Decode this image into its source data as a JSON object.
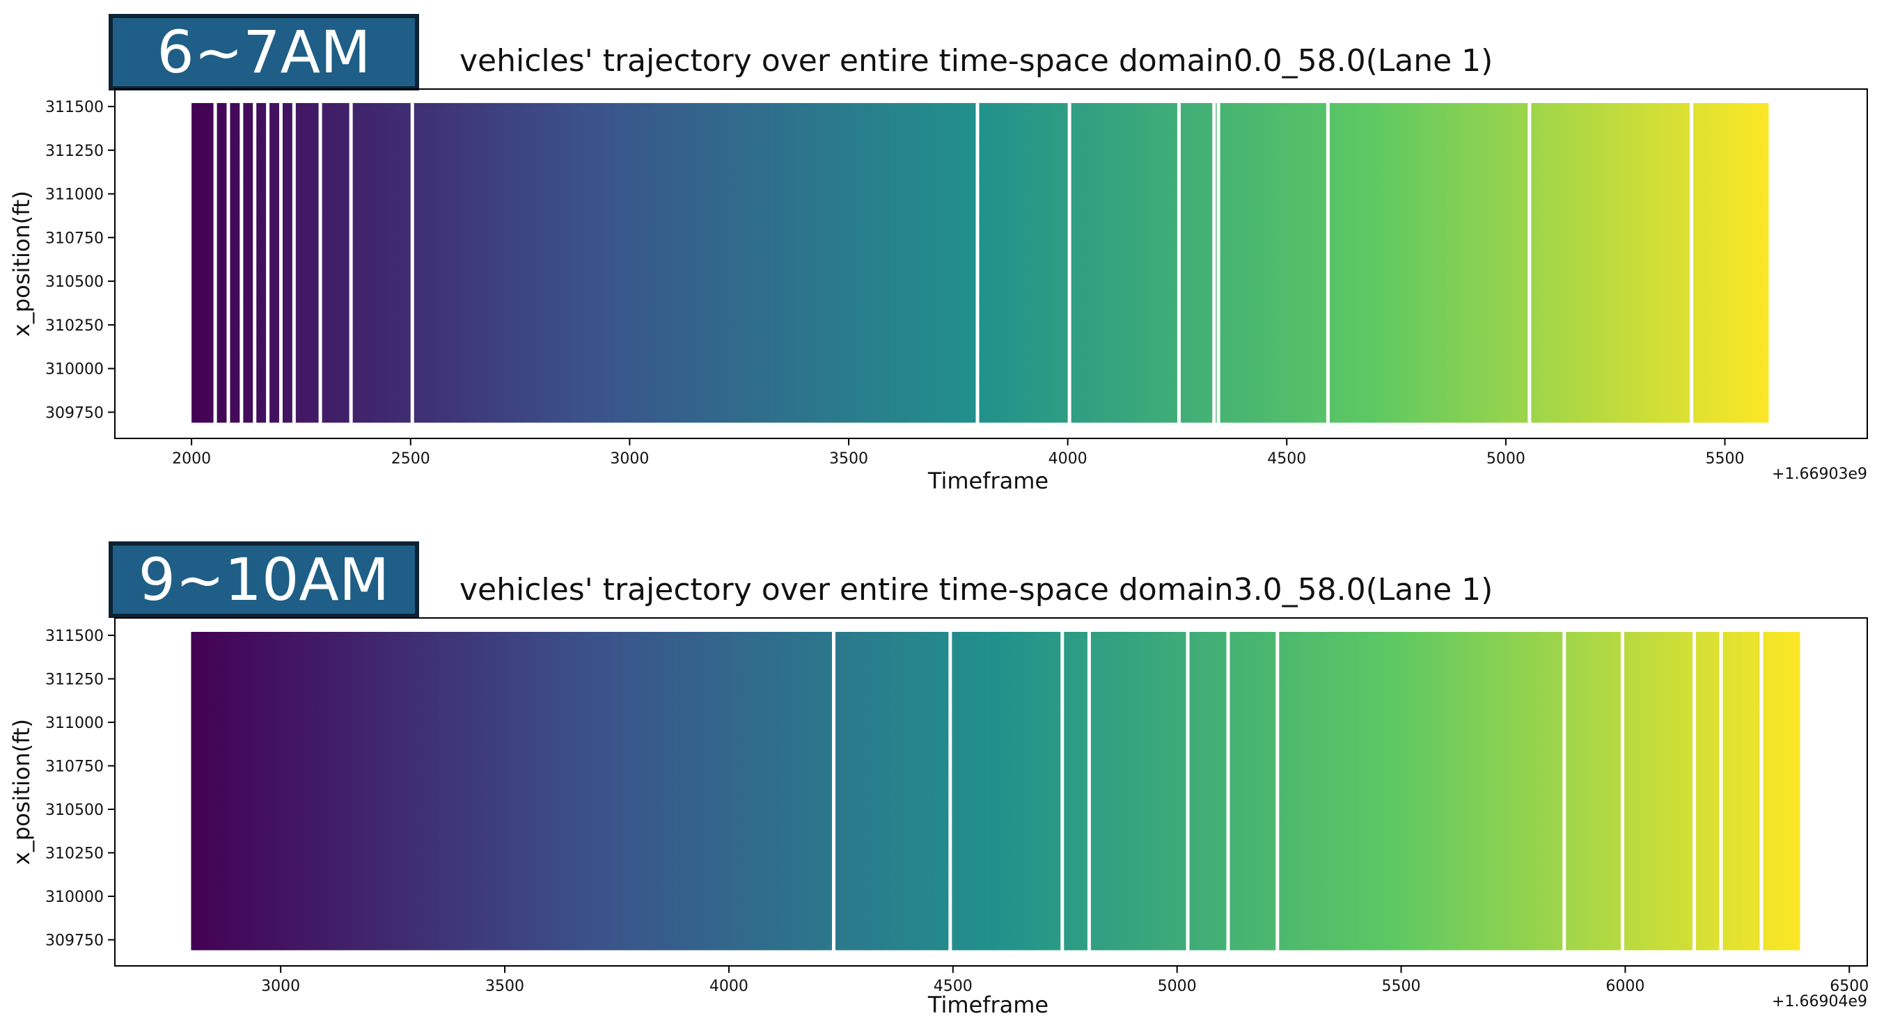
{
  "badges": [
    "6~7AM",
    "9~10AM"
  ],
  "chart_data": [
    {
      "type": "scatter",
      "badge": "6~7AM",
      "title": "vehicles' trajectory over entire time-space domain0.0_58.0(Lane 1)",
      "xlabel": "Timeframe",
      "ylabel": "x_position(ft)",
      "offset_label": "+1.66903e9",
      "xlim": [
        1825,
        5825
      ],
      "ylim": [
        309600,
        311600
      ],
      "xticks": [
        2000,
        2500,
        3000,
        3500,
        4000,
        4500,
        5000,
        5500
      ],
      "yticks": [
        309750,
        310000,
        310250,
        310500,
        310750,
        311000,
        311250,
        311500
      ],
      "data_xrange": [
        2000,
        5600
      ],
      "data_yrange": [
        309690,
        311520
      ],
      "colormap": "viridis",
      "colormap_stops": [
        "#440154",
        "#3b528b",
        "#21918c",
        "#5ec962",
        "#fde725"
      ],
      "gaps_x": [
        2050,
        2080,
        2110,
        2140,
        2170,
        2200,
        2230,
        2290,
        2360,
        2500,
        3790,
        4000,
        4250,
        4330,
        4340,
        4590,
        5050,
        5420
      ]
    },
    {
      "type": "scatter",
      "badge": "9~10AM",
      "title": "vehicles' trajectory over entire time-space domain3.0_58.0(Lane 1)",
      "xlabel": "Timeframe",
      "ylabel": "x_position(ft)",
      "offset_label": "+1.66904e9",
      "xlim": [
        2630,
        6540
      ],
      "ylim": [
        309600,
        311600
      ],
      "xticks": [
        3000,
        3500,
        4000,
        4500,
        5000,
        5500,
        6000,
        6500
      ],
      "yticks": [
        309750,
        310000,
        310250,
        310500,
        310750,
        311000,
        311250,
        311500
      ],
      "data_xrange": [
        2800,
        6390
      ],
      "data_yrange": [
        309690,
        311520
      ],
      "colormap": "viridis",
      "colormap_stops": [
        "#440154",
        "#3b528b",
        "#21918c",
        "#5ec962",
        "#fde725"
      ],
      "gaps_x": [
        4230,
        4490,
        4740,
        4800,
        5020,
        5110,
        5220,
        5860,
        5990,
        6150,
        6210,
        6300
      ]
    }
  ]
}
